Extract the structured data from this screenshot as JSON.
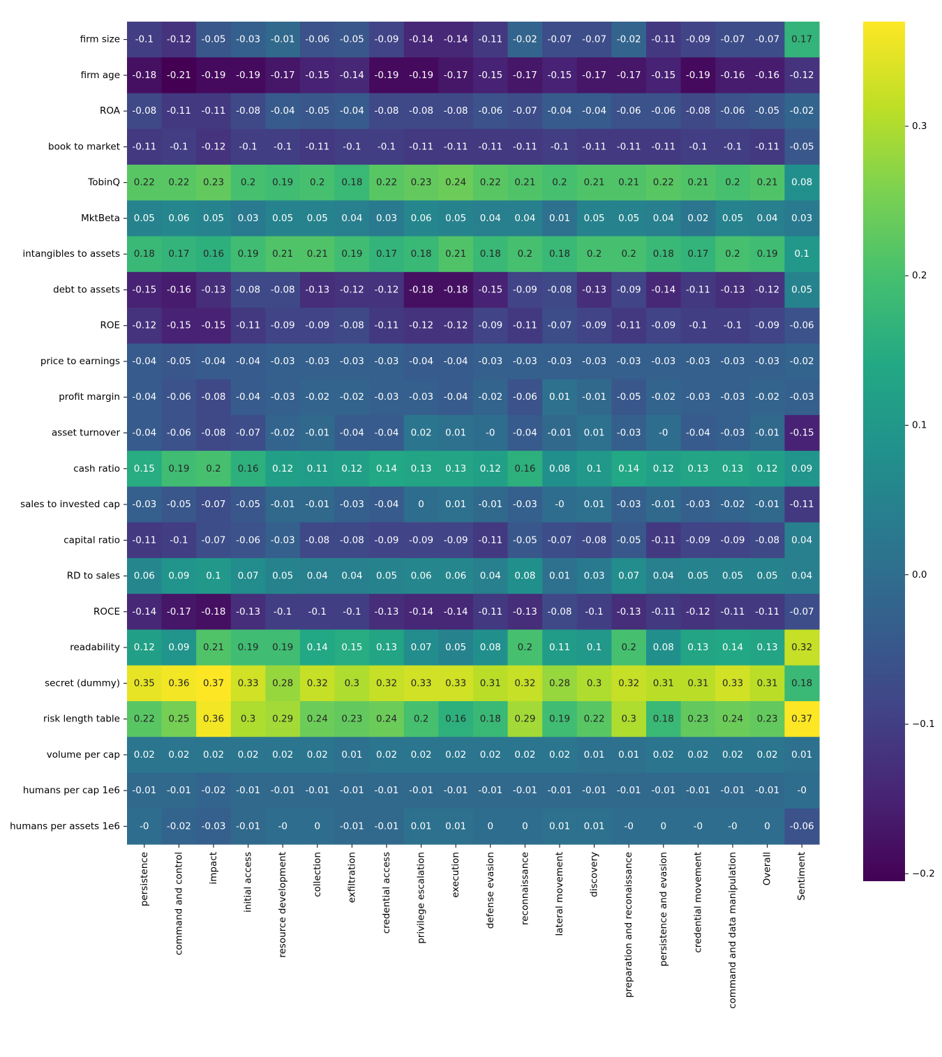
{
  "chart_data": {
    "type": "heatmap",
    "colormap": "viridis",
    "vmin": -0.205,
    "vmax": 0.37,
    "rows": [
      "firm size",
      "firm age",
      "ROA",
      "book to market",
      "TobinQ",
      "MktBeta",
      "intangibles to assets",
      "debt to assets",
      "ROE",
      "price to earnings",
      "profit margin",
      "asset turnover",
      "cash ratio",
      "sales to invested cap",
      "capital ratio",
      "RD to sales",
      "ROCE",
      "readability",
      "secret (dummy)",
      "risk length table",
      "volume per cap",
      "humans per cap 1e6",
      "humans per assets 1e6"
    ],
    "columns": [
      "persistence",
      "command and control",
      "impact",
      "initial access",
      "resource development",
      "collection",
      "exfiltration",
      "credential access",
      "privilege escalation",
      "execution",
      "defense evasion",
      "reconnaissance",
      "lateral movement",
      "discovery",
      "preparation and reconaissance",
      "persistence and evasion",
      "credential movement",
      "command and data manipulation",
      "Overall",
      "Sentiment"
    ],
    "values": [
      [
        "-0.1",
        "-0.12",
        "-0.05",
        "-0.03",
        "-0.01",
        "-0.06",
        "-0.05",
        "-0.09",
        "-0.14",
        "-0.14",
        "-0.11",
        "-0.02",
        "-0.07",
        "-0.07",
        "-0.02",
        "-0.11",
        "-0.09",
        "-0.07",
        "-0.07",
        "0.17"
      ],
      [
        "-0.18",
        "-0.21",
        "-0.19",
        "-0.19",
        "-0.17",
        "-0.15",
        "-0.14",
        "-0.19",
        "-0.19",
        "-0.17",
        "-0.15",
        "-0.17",
        "-0.15",
        "-0.17",
        "-0.17",
        "-0.15",
        "-0.19",
        "-0.16",
        "-0.16",
        "-0.12"
      ],
      [
        "-0.08",
        "-0.11",
        "-0.11",
        "-0.08",
        "-0.04",
        "-0.05",
        "-0.04",
        "-0.08",
        "-0.08",
        "-0.08",
        "-0.06",
        "-0.07",
        "-0.04",
        "-0.04",
        "-0.06",
        "-0.06",
        "-0.08",
        "-0.06",
        "-0.05",
        "-0.02"
      ],
      [
        "-0.11",
        "-0.1",
        "-0.12",
        "-0.1",
        "-0.1",
        "-0.11",
        "-0.1",
        "-0.1",
        "-0.11",
        "-0.11",
        "-0.11",
        "-0.11",
        "-0.1",
        "-0.11",
        "-0.11",
        "-0.11",
        "-0.1",
        "-0.1",
        "-0.11",
        "-0.05"
      ],
      [
        "0.22",
        "0.22",
        "0.23",
        "0.2",
        "0.19",
        "0.2",
        "0.18",
        "0.22",
        "0.23",
        "0.24",
        "0.22",
        "0.21",
        "0.2",
        "0.21",
        "0.21",
        "0.22",
        "0.21",
        "0.2",
        "0.21",
        "0.08"
      ],
      [
        "0.05",
        "0.06",
        "0.05",
        "0.03",
        "0.05",
        "0.05",
        "0.04",
        "0.03",
        "0.06",
        "0.05",
        "0.04",
        "0.04",
        "0.01",
        "0.05",
        "0.05",
        "0.04",
        "0.02",
        "0.05",
        "0.04",
        "0.03"
      ],
      [
        "0.18",
        "0.17",
        "0.16",
        "0.19",
        "0.21",
        "0.21",
        "0.19",
        "0.17",
        "0.18",
        "0.21",
        "0.18",
        "0.2",
        "0.18",
        "0.2",
        "0.2",
        "0.18",
        "0.17",
        "0.2",
        "0.19",
        "0.1"
      ],
      [
        "-0.15",
        "-0.16",
        "-0.13",
        "-0.08",
        "-0.08",
        "-0.13",
        "-0.12",
        "-0.12",
        "-0.18",
        "-0.18",
        "-0.15",
        "-0.09",
        "-0.08",
        "-0.13",
        "-0.09",
        "-0.14",
        "-0.11",
        "-0.13",
        "-0.12",
        "0.05"
      ],
      [
        "-0.12",
        "-0.15",
        "-0.15",
        "-0.11",
        "-0.09",
        "-0.09",
        "-0.08",
        "-0.11",
        "-0.12",
        "-0.12",
        "-0.09",
        "-0.11",
        "-0.07",
        "-0.09",
        "-0.11",
        "-0.09",
        "-0.1",
        "-0.1",
        "-0.09",
        "-0.06"
      ],
      [
        "-0.04",
        "-0.05",
        "-0.04",
        "-0.04",
        "-0.03",
        "-0.03",
        "-0.03",
        "-0.03",
        "-0.04",
        "-0.04",
        "-0.03",
        "-0.03",
        "-0.03",
        "-0.03",
        "-0.03",
        "-0.03",
        "-0.03",
        "-0.03",
        "-0.03",
        "-0.02"
      ],
      [
        "-0.04",
        "-0.06",
        "-0.08",
        "-0.04",
        "-0.03",
        "-0.02",
        "-0.02",
        "-0.03",
        "-0.03",
        "-0.04",
        "-0.02",
        "-0.06",
        "0.01",
        "-0.01",
        "-0.05",
        "-0.02",
        "-0.03",
        "-0.03",
        "-0.02",
        "-0.03"
      ],
      [
        "-0.04",
        "-0.06",
        "-0.08",
        "-0.07",
        "-0.02",
        "-0.01",
        "-0.04",
        "-0.04",
        "0.02",
        "0.01",
        "-0",
        "-0.04",
        "-0.01",
        "0.01",
        "-0.03",
        "-0",
        "-0.04",
        "-0.03",
        "-0.01",
        "-0.15"
      ],
      [
        "0.15",
        "0.19",
        "0.2",
        "0.16",
        "0.12",
        "0.11",
        "0.12",
        "0.14",
        "0.13",
        "0.13",
        "0.12",
        "0.16",
        "0.08",
        "0.1",
        "0.14",
        "0.12",
        "0.13",
        "0.13",
        "0.12",
        "0.09"
      ],
      [
        "-0.03",
        "-0.05",
        "-0.07",
        "-0.05",
        "-0.01",
        "-0.01",
        "-0.03",
        "-0.04",
        "0",
        "0.01",
        "-0.01",
        "-0.03",
        "-0",
        "0.01",
        "-0.03",
        "-0.01",
        "-0.03",
        "-0.02",
        "-0.01",
        "-0.11"
      ],
      [
        "-0.11",
        "-0.1",
        "-0.07",
        "-0.06",
        "-0.03",
        "-0.08",
        "-0.08",
        "-0.09",
        "-0.09",
        "-0.09",
        "-0.11",
        "-0.05",
        "-0.07",
        "-0.08",
        "-0.05",
        "-0.11",
        "-0.09",
        "-0.09",
        "-0.08",
        "0.04"
      ],
      [
        "0.06",
        "0.09",
        "0.1",
        "0.07",
        "0.05",
        "0.04",
        "0.04",
        "0.05",
        "0.06",
        "0.06",
        "0.04",
        "0.08",
        "0.01",
        "0.03",
        "0.07",
        "0.04",
        "0.05",
        "0.05",
        "0.05",
        "0.04"
      ],
      [
        "-0.14",
        "-0.17",
        "-0.18",
        "-0.13",
        "-0.1",
        "-0.1",
        "-0.1",
        "-0.13",
        "-0.14",
        "-0.14",
        "-0.11",
        "-0.13",
        "-0.08",
        "-0.1",
        "-0.13",
        "-0.11",
        "-0.12",
        "-0.11",
        "-0.11",
        "-0.07"
      ],
      [
        "0.12",
        "0.09",
        "0.21",
        "0.19",
        "0.19",
        "0.14",
        "0.15",
        "0.13",
        "0.07",
        "0.05",
        "0.08",
        "0.2",
        "0.11",
        "0.1",
        "0.2",
        "0.08",
        "0.13",
        "0.14",
        "0.13",
        "0.32"
      ],
      [
        "0.35",
        "0.36",
        "0.37",
        "0.33",
        "0.28",
        "0.32",
        "0.3",
        "0.32",
        "0.33",
        "0.33",
        "0.31",
        "0.32",
        "0.28",
        "0.3",
        "0.32",
        "0.31",
        "0.31",
        "0.33",
        "0.31",
        "0.18"
      ],
      [
        "0.22",
        "0.25",
        "0.36",
        "0.3",
        "0.29",
        "0.24",
        "0.23",
        "0.24",
        "0.2",
        "0.16",
        "0.18",
        "0.29",
        "0.19",
        "0.22",
        "0.3",
        "0.18",
        "0.23",
        "0.24",
        "0.23",
        "0.37"
      ],
      [
        "0.02",
        "0.02",
        "0.02",
        "0.02",
        "0.02",
        "0.02",
        "0.01",
        "0.02",
        "0.02",
        "0.02",
        "0.02",
        "0.02",
        "0.02",
        "0.01",
        "0.01",
        "0.02",
        "0.02",
        "0.02",
        "0.02",
        "0.01"
      ],
      [
        "-0.01",
        "-0.01",
        "-0.02",
        "-0.01",
        "-0.01",
        "-0.01",
        "-0.01",
        "-0.01",
        "-0.01",
        "-0.01",
        "-0.01",
        "-0.01",
        "-0.01",
        "-0.01",
        "-0.01",
        "-0.01",
        "-0.01",
        "-0.01",
        "-0.01",
        "-0"
      ],
      [
        "-0",
        "-0.02",
        "-0.03",
        "-0.01",
        "-0",
        "0",
        "-0.01",
        "-0.01",
        "0.01",
        "0.01",
        "0",
        "0",
        "0.01",
        "0.01",
        "-0",
        "0",
        "-0",
        "-0",
        "0",
        "-0.06"
      ]
    ],
    "colorbar": {
      "ticks": [
        0.3,
        0.2,
        0.1,
        0.0,
        -0.1,
        -0.2
      ],
      "tick_labels": [
        "0.3",
        "0.2",
        "0.1",
        "0.0",
        "−0.1",
        "−0.2"
      ]
    }
  }
}
